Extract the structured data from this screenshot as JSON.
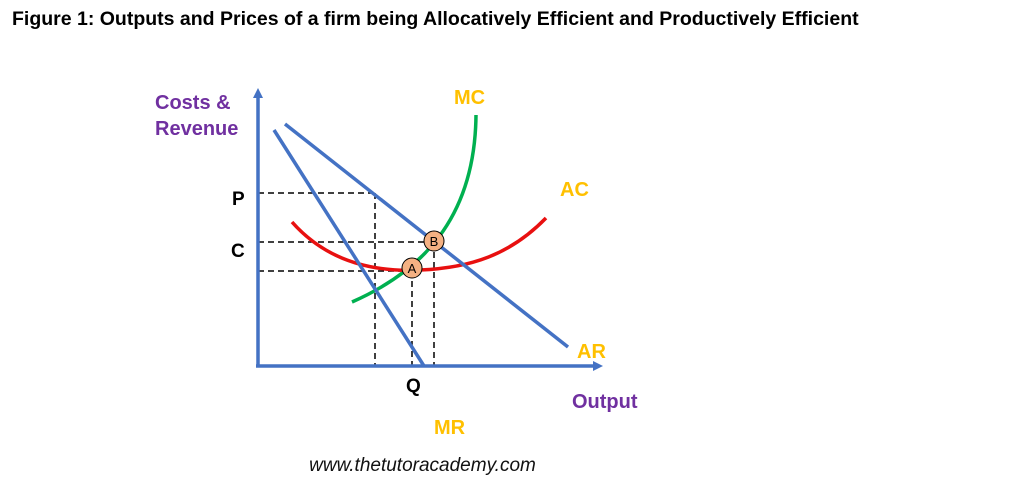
{
  "title": "Figure 1: Outputs and Prices of a firm being Allocatively Efficient and Productively Efficient",
  "axes": {
    "y_label_line1": "Costs &",
    "y_label_line2": "Revenue",
    "x_label": "Output"
  },
  "ticks": {
    "p": "P",
    "c": "C",
    "q": "Q"
  },
  "curves": {
    "mc": "MC",
    "ac": "AC",
    "ar": "AR",
    "mr": "MR"
  },
  "points": {
    "a": "A",
    "b": "B"
  },
  "footer": "www.thetutoracademy.com",
  "colors": {
    "axis": "#4472c4",
    "demand": "#4472c4",
    "mc": "#00b050",
    "ac": "#e81010",
    "curve_label": "#ffc000",
    "axis_label": "#7030a0",
    "point_fill": "#f4b183"
  }
}
